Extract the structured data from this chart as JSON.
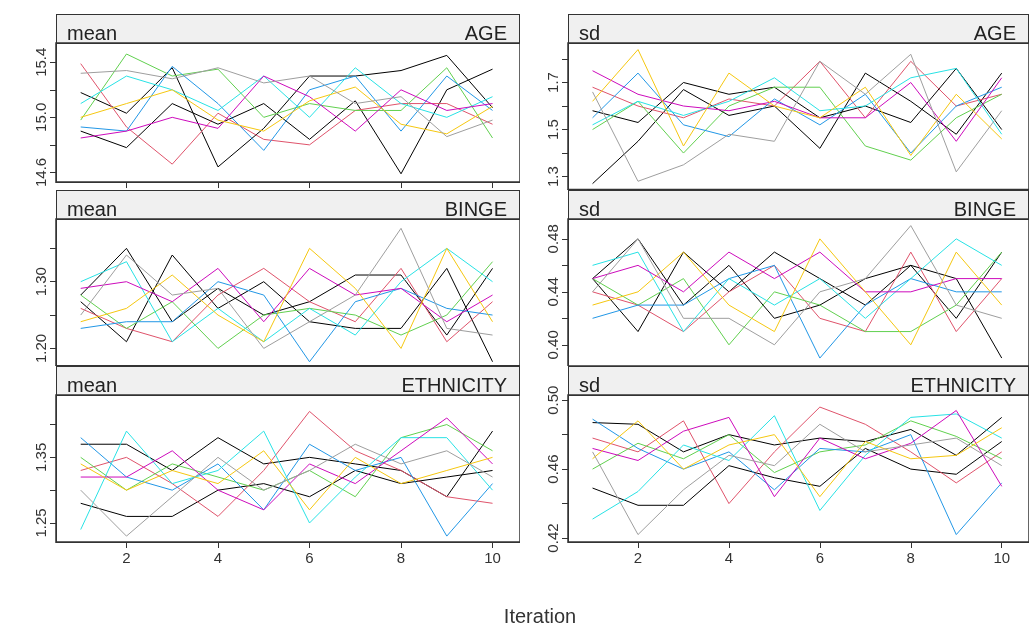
{
  "chart_data": [
    {
      "type": "line",
      "title": "mean",
      "subtitle": "AGE",
      "tick_labels": "y",
      "xlim": [
        0.46,
        10.6
      ],
      "xticks": [
        2,
        4,
        6,
        8,
        10
      ],
      "ylim": [
        14.53,
        15.54
      ],
      "yticks": [
        14.6,
        {
          "value": 14.8,
          "label": null
        },
        {
          "value": 15.0,
          "label": "15.0"
        },
        {
          "value": 15.2,
          "label": null
        },
        15.4
      ],
      "x": [
        1,
        2,
        3,
        4,
        5,
        6,
        7,
        8,
        9,
        10
      ],
      "series": [
        {
          "color": "#000000",
          "values": [
            15.18,
            15.03,
            15.36,
            14.64,
            14.92,
            15.3,
            15.3,
            15.34,
            15.45,
            15.07
          ]
        },
        {
          "color": "#000000",
          "values": [
            14.9,
            14.78,
            15.1,
            14.95,
            15.1,
            14.84,
            15.12,
            14.59,
            15.2,
            15.35
          ]
        },
        {
          "color": "#df536b",
          "values": [
            15.39,
            14.93,
            14.66,
            15.03,
            14.84,
            14.8,
            15.05,
            15.1,
            15.1,
            14.95
          ]
        },
        {
          "color": "#61d04f",
          "values": [
            14.98,
            15.46,
            15.3,
            15.35,
            15.0,
            15.1,
            15.05,
            15.05,
            15.36,
            14.85
          ]
        },
        {
          "color": "#2297e6",
          "values": [
            14.93,
            14.9,
            15.37,
            15.1,
            14.76,
            15.2,
            15.3,
            14.9,
            15.3,
            15.05
          ]
        },
        {
          "color": "#28e2e5",
          "values": [
            15.1,
            15.3,
            15.2,
            15.05,
            15.3,
            15.0,
            15.36,
            15.1,
            15.0,
            15.15
          ]
        },
        {
          "color": "#cd0bbc",
          "values": [
            14.85,
            14.9,
            15.0,
            14.92,
            15.3,
            15.15,
            14.9,
            15.2,
            15.05,
            15.1
          ]
        },
        {
          "color": "#f5c710",
          "values": [
            15.0,
            15.1,
            15.2,
            14.98,
            14.9,
            15.12,
            15.22,
            14.95,
            14.88,
            15.08
          ]
        },
        {
          "color": "#9e9e9e",
          "values": [
            15.32,
            15.34,
            15.28,
            15.36,
            15.25,
            15.3,
            15.1,
            15.15,
            14.86,
            14.98
          ]
        }
      ]
    },
    {
      "type": "line",
      "title": "sd",
      "subtitle": "AGE",
      "tick_labels": "y",
      "xlim": [
        0.46,
        10.6
      ],
      "xticks": [
        2,
        4,
        6,
        8,
        10
      ],
      "ylim": [
        1.245,
        1.868
      ],
      "yticks": [
        1.3,
        {
          "value": 1.4,
          "label": null
        },
        1.5,
        {
          "value": 1.6,
          "label": null
        },
        1.7,
        {
          "value": 1.8,
          "label": null
        }
      ],
      "x": [
        1,
        2,
        3,
        4,
        5,
        6,
        7,
        8,
        9,
        10
      ],
      "series": [
        {
          "color": "#000000",
          "values": [
            1.27,
            1.45,
            1.67,
            1.56,
            1.6,
            1.42,
            1.74,
            1.62,
            1.48,
            1.74
          ]
        },
        {
          "color": "#000000",
          "values": [
            1.58,
            1.53,
            1.7,
            1.65,
            1.68,
            1.55,
            1.6,
            1.53,
            1.76,
            1.5
          ]
        },
        {
          "color": "#df536b",
          "values": [
            1.68,
            1.6,
            1.55,
            1.63,
            1.6,
            1.79,
            1.55,
            1.79,
            1.6,
            1.65
          ]
        },
        {
          "color": "#61d04f",
          "values": [
            1.5,
            1.62,
            1.4,
            1.6,
            1.68,
            1.68,
            1.43,
            1.37,
            1.55,
            1.65
          ]
        },
        {
          "color": "#2297e6",
          "values": [
            1.55,
            1.74,
            1.52,
            1.47,
            1.63,
            1.52,
            1.65,
            1.4,
            1.6,
            1.68
          ]
        },
        {
          "color": "#28e2e5",
          "values": [
            1.52,
            1.62,
            1.56,
            1.62,
            1.72,
            1.58,
            1.6,
            1.72,
            1.76,
            1.48
          ]
        },
        {
          "color": "#cd0bbc",
          "values": [
            1.75,
            1.65,
            1.6,
            1.58,
            1.62,
            1.55,
            1.55,
            1.7,
            1.45,
            1.72
          ]
        },
        {
          "color": "#f5c710",
          "values": [
            1.62,
            1.84,
            1.43,
            1.74,
            1.6,
            1.55,
            1.68,
            1.39,
            1.65,
            1.46
          ]
        },
        {
          "color": "#9e9e9e",
          "values": [
            1.66,
            1.28,
            1.35,
            1.48,
            1.45,
            1.79,
            1.65,
            1.82,
            1.32,
            1.58
          ]
        }
      ]
    },
    {
      "type": "line",
      "title": "mean",
      "subtitle": "BINGE",
      "tick_labels": "y",
      "xlim": [
        0.46,
        10.6
      ],
      "xticks": [
        2,
        4,
        6,
        8,
        10
      ],
      "ylim": [
        1.174,
        1.394
      ],
      "yticks": [
        {
          "value": 1.2,
          "label": "1.20"
        },
        {
          "value": 1.25,
          "label": null
        },
        {
          "value": 1.3,
          "label": "1.30"
        },
        {
          "value": 1.35,
          "label": null
        }
      ],
      "x": [
        1,
        2,
        3,
        4,
        5,
        6,
        7,
        8,
        9,
        10
      ],
      "series": [
        {
          "color": "#000000",
          "values": [
            1.28,
            1.35,
            1.24,
            1.29,
            1.25,
            1.27,
            1.31,
            1.31,
            1.22,
            1.32
          ]
        },
        {
          "color": "#000000",
          "values": [
            1.27,
            1.21,
            1.34,
            1.26,
            1.3,
            1.24,
            1.23,
            1.23,
            1.32,
            1.18
          ]
        },
        {
          "color": "#df536b",
          "values": [
            1.26,
            1.23,
            1.21,
            1.28,
            1.32,
            1.27,
            1.24,
            1.32,
            1.21,
            1.27
          ]
        },
        {
          "color": "#61d04f",
          "values": [
            1.28,
            1.23,
            1.27,
            1.2,
            1.25,
            1.26,
            1.25,
            1.22,
            1.25,
            1.33
          ]
        },
        {
          "color": "#2297e6",
          "values": [
            1.23,
            1.24,
            1.24,
            1.3,
            1.28,
            1.18,
            1.27,
            1.29,
            1.26,
            1.25
          ]
        },
        {
          "color": "#28e2e5",
          "values": [
            1.3,
            1.33,
            1.21,
            1.26,
            1.21,
            1.26,
            1.22,
            1.3,
            1.35,
            1.3
          ]
        },
        {
          "color": "#cd0bbc",
          "values": [
            1.29,
            1.3,
            1.27,
            1.32,
            1.24,
            1.32,
            1.28,
            1.29,
            1.24,
            1.28
          ]
        },
        {
          "color": "#f5c710",
          "values": [
            1.24,
            1.26,
            1.31,
            1.25,
            1.21,
            1.35,
            1.29,
            1.2,
            1.35,
            1.24
          ]
        },
        {
          "color": "#9e9e9e",
          "values": [
            1.25,
            1.34,
            1.28,
            1.29,
            1.2,
            1.24,
            1.28,
            1.38,
            1.23,
            1.22
          ]
        }
      ]
    },
    {
      "type": "line",
      "title": "sd",
      "subtitle": "BINGE",
      "tick_labels": "y",
      "xlim": [
        0.46,
        10.6
      ],
      "xticks": [
        2,
        4,
        6,
        8,
        10
      ],
      "ylim": [
        0.384,
        0.495
      ],
      "yticks": [
        {
          "value": 0.4,
          "label": "0.40"
        },
        {
          "value": 0.42,
          "label": null
        },
        0.44,
        {
          "value": 0.46,
          "label": null
        },
        0.48
      ],
      "x": [
        1,
        2,
        3,
        4,
        5,
        6,
        7,
        8,
        9,
        10
      ],
      "series": [
        {
          "color": "#000000",
          "values": [
            0.45,
            0.48,
            0.43,
            0.46,
            0.42,
            0.43,
            0.45,
            0.46,
            0.42,
            0.47
          ]
        },
        {
          "color": "#000000",
          "values": [
            0.45,
            0.41,
            0.47,
            0.44,
            0.47,
            0.45,
            0.43,
            0.46,
            0.45,
            0.39
          ]
        },
        {
          "color": "#df536b",
          "values": [
            0.44,
            0.43,
            0.41,
            0.44,
            0.46,
            0.42,
            0.41,
            0.47,
            0.41,
            0.45
          ]
        },
        {
          "color": "#61d04f",
          "values": [
            0.45,
            0.43,
            0.45,
            0.4,
            0.44,
            0.43,
            0.41,
            0.41,
            0.43,
            0.47
          ]
        },
        {
          "color": "#2297e6",
          "values": [
            0.42,
            0.43,
            0.43,
            0.45,
            0.46,
            0.39,
            0.43,
            0.45,
            0.44,
            0.44
          ]
        },
        {
          "color": "#28e2e5",
          "values": [
            0.46,
            0.47,
            0.41,
            0.45,
            0.43,
            0.45,
            0.42,
            0.45,
            0.48,
            0.46
          ]
        },
        {
          "color": "#cd0bbc",
          "values": [
            0.45,
            0.46,
            0.44,
            0.47,
            0.45,
            0.47,
            0.44,
            0.44,
            0.45,
            0.45
          ]
        },
        {
          "color": "#f5c710",
          "values": [
            0.43,
            0.44,
            0.47,
            0.43,
            0.41,
            0.48,
            0.44,
            0.4,
            0.47,
            0.43
          ]
        },
        {
          "color": "#9e9e9e",
          "values": [
            0.44,
            0.48,
            0.42,
            0.42,
            0.4,
            0.44,
            0.45,
            0.49,
            0.43,
            0.42
          ]
        }
      ]
    },
    {
      "type": "line",
      "title": "mean",
      "subtitle": "ETHNICITY",
      "xlabel": "Iteration",
      "xlim": [
        0.46,
        10.6
      ],
      "xticks": [
        2,
        4,
        6,
        8,
        10
      ],
      "ylim": [
        1.221,
        1.445
      ],
      "yticks": [
        1.25,
        {
          "value": 1.3,
          "label": null
        },
        1.35,
        {
          "value": 1.4,
          "label": null
        }
      ],
      "x": [
        1,
        2,
        3,
        4,
        5,
        6,
        7,
        8,
        9,
        10
      ],
      "series": [
        {
          "color": "#000000",
          "values": [
            1.37,
            1.37,
            1.33,
            1.38,
            1.34,
            1.35,
            1.34,
            1.33,
            1.29,
            1.39
          ]
        },
        {
          "color": "#000000",
          "values": [
            1.28,
            1.26,
            1.26,
            1.3,
            1.31,
            1.29,
            1.33,
            1.31,
            1.32,
            1.33
          ]
        },
        {
          "color": "#df536b",
          "values": [
            1.33,
            1.35,
            1.31,
            1.26,
            1.33,
            1.42,
            1.36,
            1.33,
            1.29,
            1.28
          ]
        },
        {
          "color": "#61d04f",
          "values": [
            1.35,
            1.3,
            1.34,
            1.32,
            1.3,
            1.33,
            1.29,
            1.38,
            1.4,
            1.36
          ]
        },
        {
          "color": "#2297e6",
          "values": [
            1.38,
            1.32,
            1.3,
            1.34,
            1.27,
            1.37,
            1.33,
            1.35,
            1.23,
            1.31
          ]
        },
        {
          "color": "#28e2e5",
          "values": [
            1.24,
            1.39,
            1.31,
            1.33,
            1.39,
            1.25,
            1.32,
            1.38,
            1.38,
            1.3
          ]
        },
        {
          "color": "#cd0bbc",
          "values": [
            1.32,
            1.32,
            1.36,
            1.3,
            1.27,
            1.34,
            1.31,
            1.36,
            1.41,
            1.34
          ]
        },
        {
          "color": "#f5c710",
          "values": [
            1.34,
            1.3,
            1.33,
            1.31,
            1.36,
            1.27,
            1.35,
            1.31,
            1.33,
            1.35
          ]
        },
        {
          "color": "#9e9e9e",
          "values": [
            1.3,
            1.23,
            1.29,
            1.35,
            1.3,
            1.33,
            1.37,
            1.34,
            1.36,
            1.32
          ]
        }
      ]
    },
    {
      "type": "line",
      "title": "sd",
      "subtitle": "ETHNICITY",
      "xlim": [
        0.46,
        10.6
      ],
      "xticks": [
        2,
        4,
        6,
        8,
        10
      ],
      "ylim": [
        0.4177,
        0.503
      ],
      "yticks": [
        0.42,
        {
          "value": 0.44,
          "label": null
        },
        0.46,
        {
          "value": 0.48,
          "label": null
        },
        {
          "value": 0.5,
          "label": "0.50"
        }
      ],
      "x": [
        1,
        2,
        3,
        4,
        5,
        6,
        7,
        8,
        9,
        10
      ],
      "series": [
        {
          "color": "#000000",
          "values": [
            0.487,
            0.486,
            0.47,
            0.48,
            0.474,
            0.478,
            0.476,
            0.483,
            0.468,
            0.49
          ]
        },
        {
          "color": "#000000",
          "values": [
            0.449,
            0.439,
            0.439,
            0.462,
            0.455,
            0.45,
            0.472,
            0.46,
            0.457,
            0.476
          ]
        },
        {
          "color": "#df536b",
          "values": [
            0.478,
            0.47,
            0.488,
            0.44,
            0.47,
            0.496,
            0.486,
            0.47,
            0.452,
            0.47
          ]
        },
        {
          "color": "#61d04f",
          "values": [
            0.46,
            0.475,
            0.466,
            0.48,
            0.458,
            0.47,
            0.474,
            0.488,
            0.479,
            0.466
          ]
        },
        {
          "color": "#2297e6",
          "values": [
            0.489,
            0.472,
            0.46,
            0.47,
            0.448,
            0.472,
            0.47,
            0.48,
            0.422,
            0.452
          ]
        },
        {
          "color": "#28e2e5",
          "values": [
            0.431,
            0.447,
            0.474,
            0.465,
            0.491,
            0.436,
            0.468,
            0.49,
            0.492,
            0.478
          ]
        },
        {
          "color": "#cd0bbc",
          "values": [
            0.472,
            0.465,
            0.482,
            0.49,
            0.444,
            0.478,
            0.466,
            0.475,
            0.494,
            0.45
          ]
        },
        {
          "color": "#f5c710",
          "values": [
            0.466,
            0.488,
            0.46,
            0.474,
            0.48,
            0.444,
            0.476,
            0.466,
            0.468,
            0.484
          ]
        },
        {
          "color": "#9e9e9e",
          "values": [
            0.47,
            0.422,
            0.448,
            0.468,
            0.462,
            0.486,
            0.47,
            0.474,
            0.478,
            0.462
          ]
        }
      ]
    }
  ]
}
